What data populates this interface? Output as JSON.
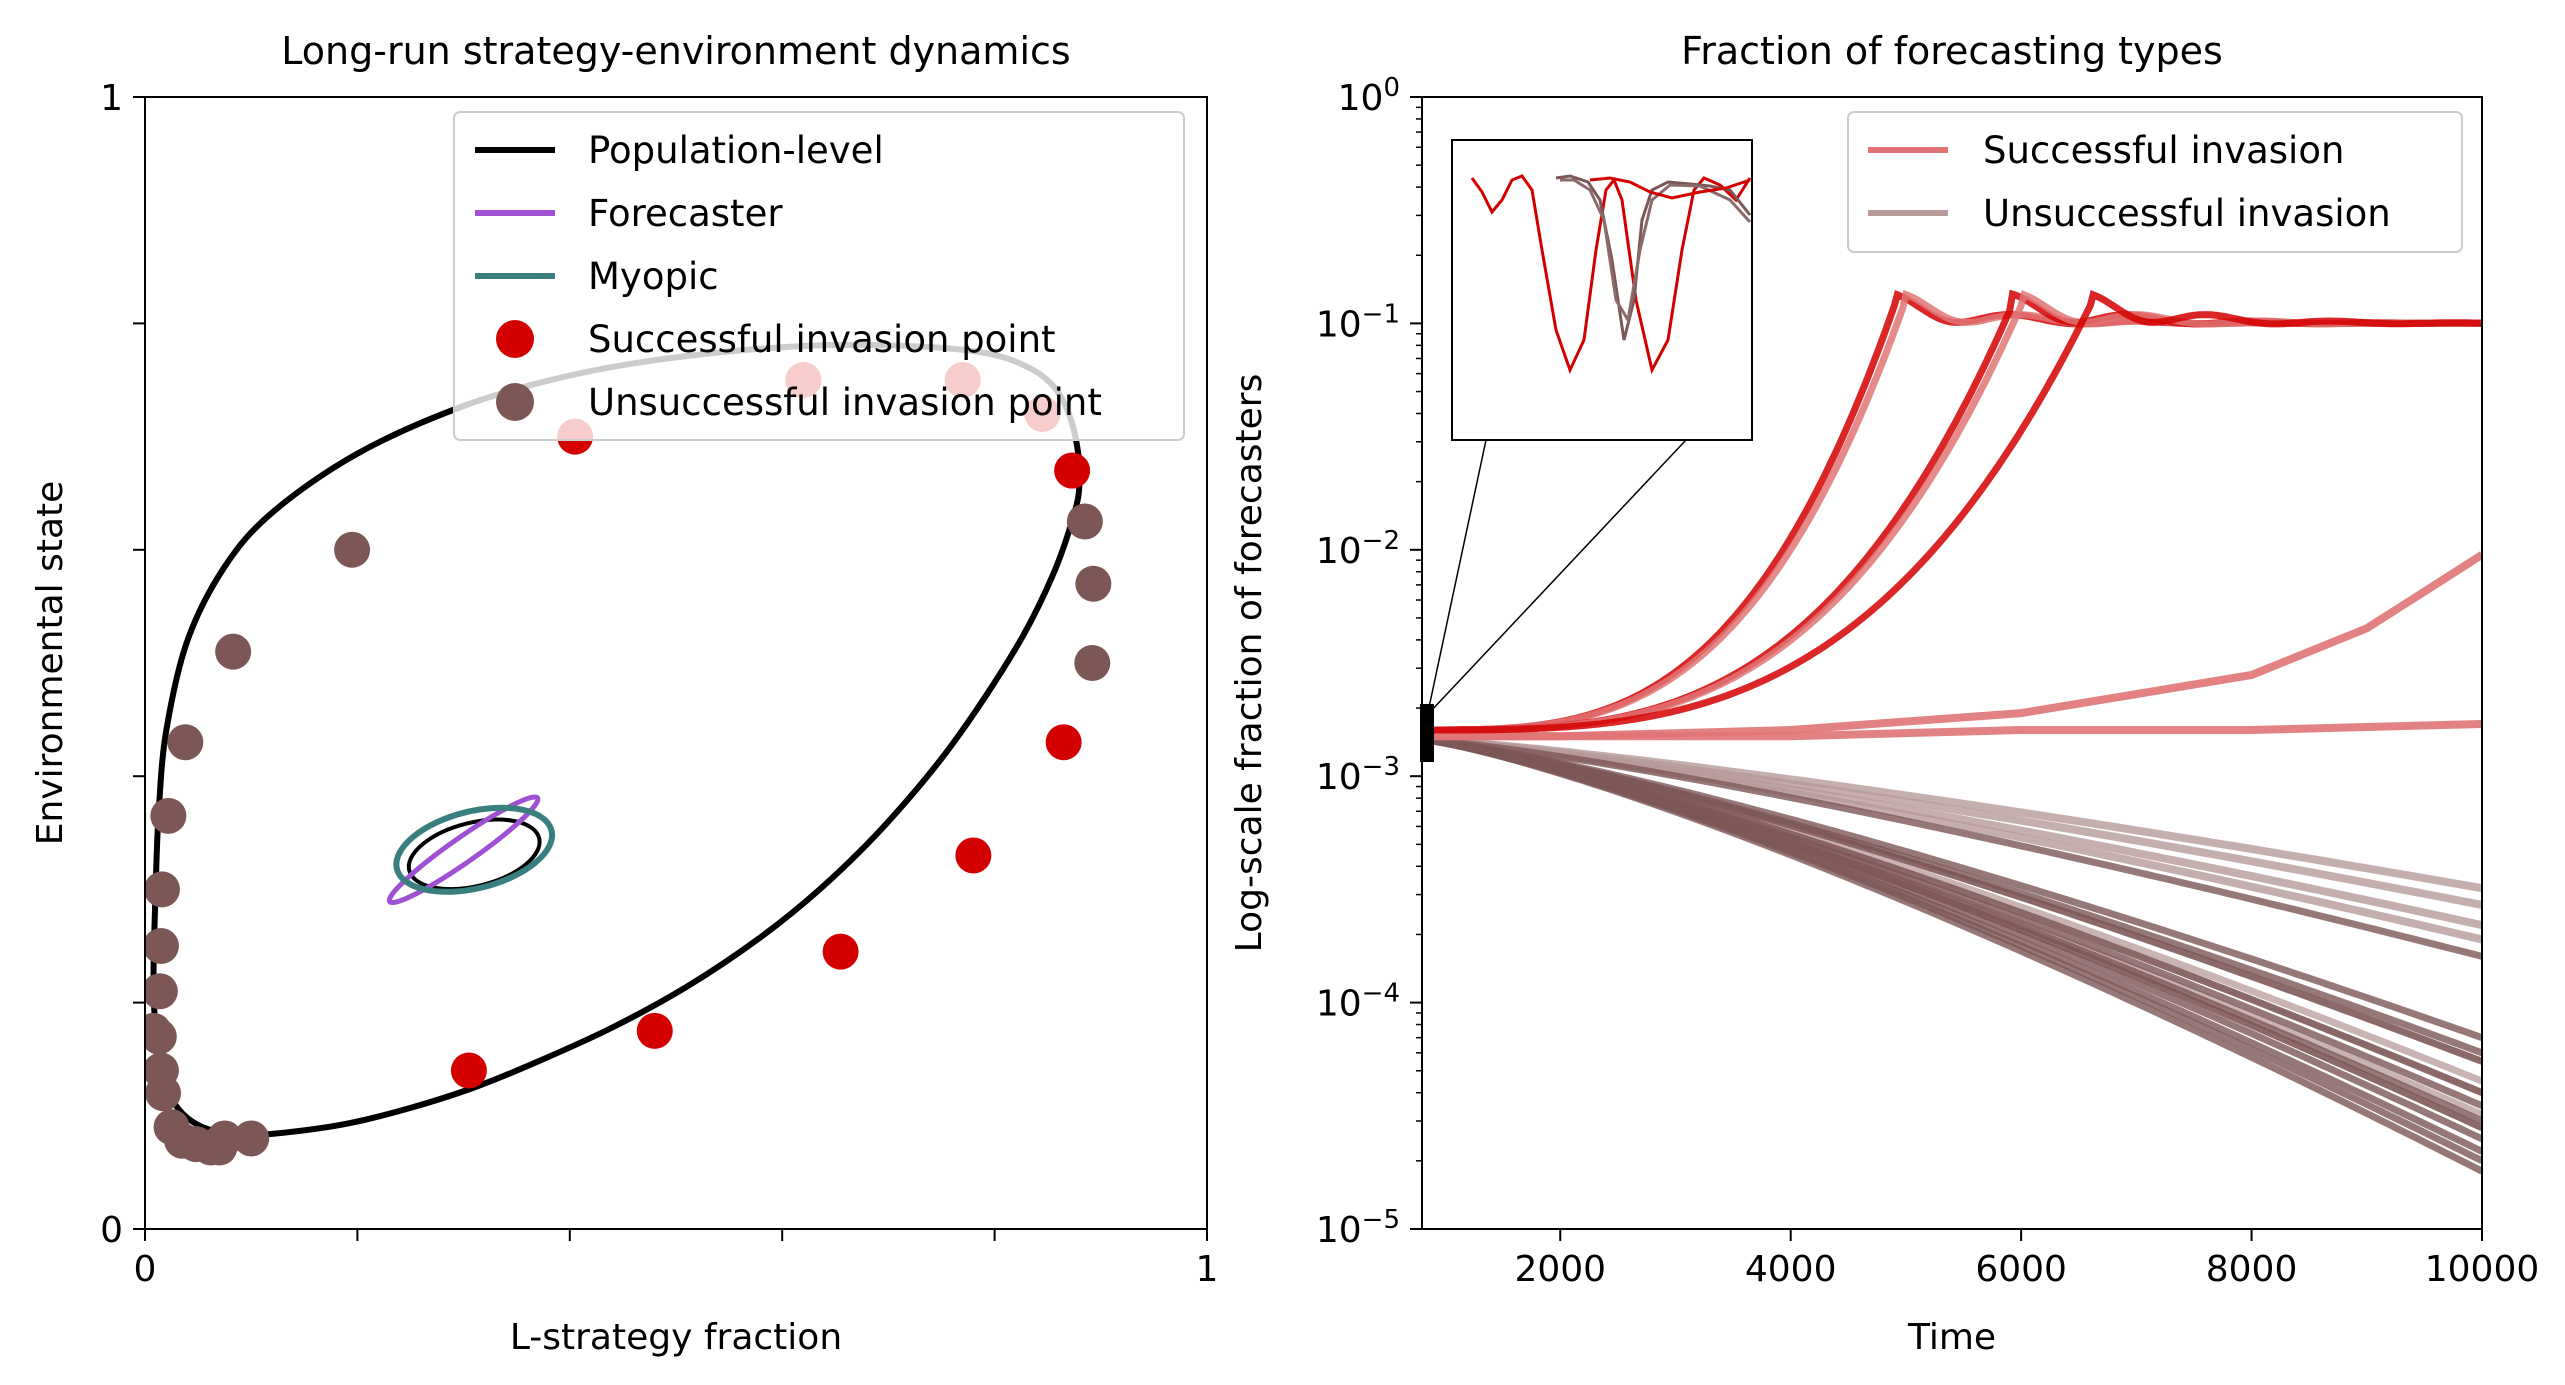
{
  "chart_data": [
    {
      "type": "line",
      "title": "Long-run strategy-environment dynamics",
      "xlabel": "L-strategy fraction",
      "ylabel": "Environmental state",
      "xlim": [
        0,
        1
      ],
      "ylim": [
        0,
        1
      ],
      "x_ticks": [
        0,
        0.2,
        0.4,
        0.6,
        0.8,
        1
      ],
      "x_tick_labels": [
        "0",
        "",
        "",
        "",
        "",
        "1"
      ],
      "y_ticks": [
        0,
        0.2,
        0.4,
        0.6,
        0.8,
        1
      ],
      "y_tick_labels": [
        "0",
        "",
        "",
        "",
        "",
        "1"
      ],
      "legend_position": "top-right",
      "legend": [
        "Population-level",
        "Forecaster",
        "Myopic",
        "Successful invasion point",
        "Unsuccessful invasion point"
      ],
      "colors": {
        "population": "#000000",
        "forecaster": "#a050d2",
        "myopic": "#3a7f7f",
        "successful": "#d40000",
        "unsuccessful": "#7d5656"
      },
      "population_cycle": [
        [
          0.01,
          0.17
        ],
        [
          0.015,
          0.14
        ],
        [
          0.025,
          0.115
        ],
        [
          0.04,
          0.098
        ],
        [
          0.06,
          0.088
        ],
        [
          0.09,
          0.083
        ],
        [
          0.13,
          0.085
        ],
        [
          0.19,
          0.093
        ],
        [
          0.25,
          0.107
        ],
        [
          0.31,
          0.125
        ],
        [
          0.37,
          0.148
        ],
        [
          0.44,
          0.178
        ],
        [
          0.51,
          0.214
        ],
        [
          0.58,
          0.258
        ],
        [
          0.64,
          0.304
        ],
        [
          0.7,
          0.36
        ],
        [
          0.76,
          0.428
        ],
        [
          0.82,
          0.513
        ],
        [
          0.855,
          0.578
        ],
        [
          0.875,
          0.632
        ],
        [
          0.88,
          0.66
        ],
        [
          0.878,
          0.69
        ],
        [
          0.87,
          0.72
        ],
        [
          0.855,
          0.745
        ],
        [
          0.83,
          0.762
        ],
        [
          0.79,
          0.774
        ],
        [
          0.72,
          0.78
        ],
        [
          0.62,
          0.78
        ],
        [
          0.5,
          0.77
        ],
        [
          0.4,
          0.754
        ],
        [
          0.3,
          0.727
        ],
        [
          0.2,
          0.685
        ],
        [
          0.12,
          0.633
        ],
        [
          0.075,
          0.585
        ],
        [
          0.04,
          0.52
        ],
        [
          0.02,
          0.44
        ],
        [
          0.013,
          0.37
        ],
        [
          0.01,
          0.3
        ],
        [
          0.008,
          0.22
        ],
        [
          0.01,
          0.17
        ]
      ],
      "forecaster_ellipse": {
        "cx": 0.3,
        "cy": 0.335,
        "rx": 0.085,
        "ry": 0.011,
        "angle_deg": -35
      },
      "myopic_ellipse": {
        "cx": 0.31,
        "cy": 0.335,
        "rx": 0.075,
        "ry": 0.034,
        "angle_deg": -14
      },
      "successful_points": [
        [
          0.305,
          0.14
        ],
        [
          0.48,
          0.175
        ],
        [
          0.655,
          0.245
        ],
        [
          0.78,
          0.33
        ],
        [
          0.865,
          0.43
        ],
        [
          0.873,
          0.67
        ],
        [
          0.845,
          0.72
        ],
        [
          0.77,
          0.75
        ],
        [
          0.62,
          0.75
        ],
        [
          0.405,
          0.7
        ]
      ],
      "unsuccessful_points": [
        [
          0.025,
          0.09
        ],
        [
          0.035,
          0.078
        ],
        [
          0.048,
          0.075
        ],
        [
          0.062,
          0.072
        ],
        [
          0.075,
          0.08
        ],
        [
          0.1,
          0.08
        ],
        [
          0.07,
          0.072
        ],
        [
          0.017,
          0.12
        ],
        [
          0.015,
          0.14
        ],
        [
          0.013,
          0.17
        ],
        [
          0.014,
          0.21
        ],
        [
          0.015,
          0.25
        ],
        [
          0.016,
          0.3
        ],
        [
          0.022,
          0.365
        ],
        [
          0.038,
          0.43
        ],
        [
          0.083,
          0.51
        ],
        [
          0.195,
          0.6
        ],
        [
          0.885,
          0.625
        ],
        [
          0.893,
          0.57
        ],
        [
          0.892,
          0.5
        ],
        [
          0.008,
          0.175
        ]
      ]
    },
    {
      "type": "line",
      "title": "Fraction of forecasting types",
      "xlabel": "Time",
      "ylabel": "Log-scale fraction of forecasters",
      "xlim": [
        800,
        10000
      ],
      "ylim": [
        1e-05,
        1
      ],
      "yscale": "log",
      "x_ticks": [
        2000,
        4000,
        6000,
        8000,
        10000
      ],
      "x_tick_labels": [
        "2000",
        "4000",
        "6000",
        "8000",
        "10000"
      ],
      "y_ticks": [
        1e-05,
        0.0001,
        0.001,
        0.01,
        0.1,
        1
      ],
      "y_tick_labels": [
        [
          "10",
          "−5"
        ],
        [
          "10",
          "−4"
        ],
        [
          "10",
          "−3"
        ],
        [
          "10",
          "−2"
        ],
        [
          "10",
          "−1"
        ],
        [
          "10",
          "0"
        ]
      ],
      "legend_position": "top-right",
      "legend": [
        "Successful invasion",
        "Unsuccessful invasion"
      ],
      "colors": {
        "successful": "#e07474",
        "successful_dark": "#d40000",
        "unsuccessful": "#b79a9a",
        "unsuccessful_dark": "#7d5656"
      },
      "successful_takeover_times": [
        4900,
        4980,
        5920,
        6000,
        6600
      ],
      "successful_other": [
        {
          "x": [
            800,
            2000,
            4000,
            6000,
            8000,
            9000,
            10000
          ],
          "y": [
            0.0015,
            0.0015,
            0.0016,
            0.0019,
            0.0028,
            0.0045,
            0.0095
          ]
        },
        {
          "x": [
            800,
            2000,
            4000,
            6000,
            8000,
            10000
          ],
          "y": [
            0.0015,
            0.0015,
            0.0015,
            0.0016,
            0.0016,
            0.0017
          ]
        }
      ],
      "unsuccessful_end_values": [
        0.00032,
        0.00027,
        0.00022,
        0.00019,
        0.00016,
        7e-05,
        6e-05,
        5.5e-05,
        4e-05,
        3.5e-05,
        3e-05,
        2.8e-05,
        2.5e-05,
        2.2e-05,
        2e-05,
        1.8e-05
      ],
      "unsuccessful_faint_end_values": [
        5.5e-05,
        4.5e-05,
        4e-05,
        3.2e-05,
        2.8e-05
      ]
    }
  ]
}
